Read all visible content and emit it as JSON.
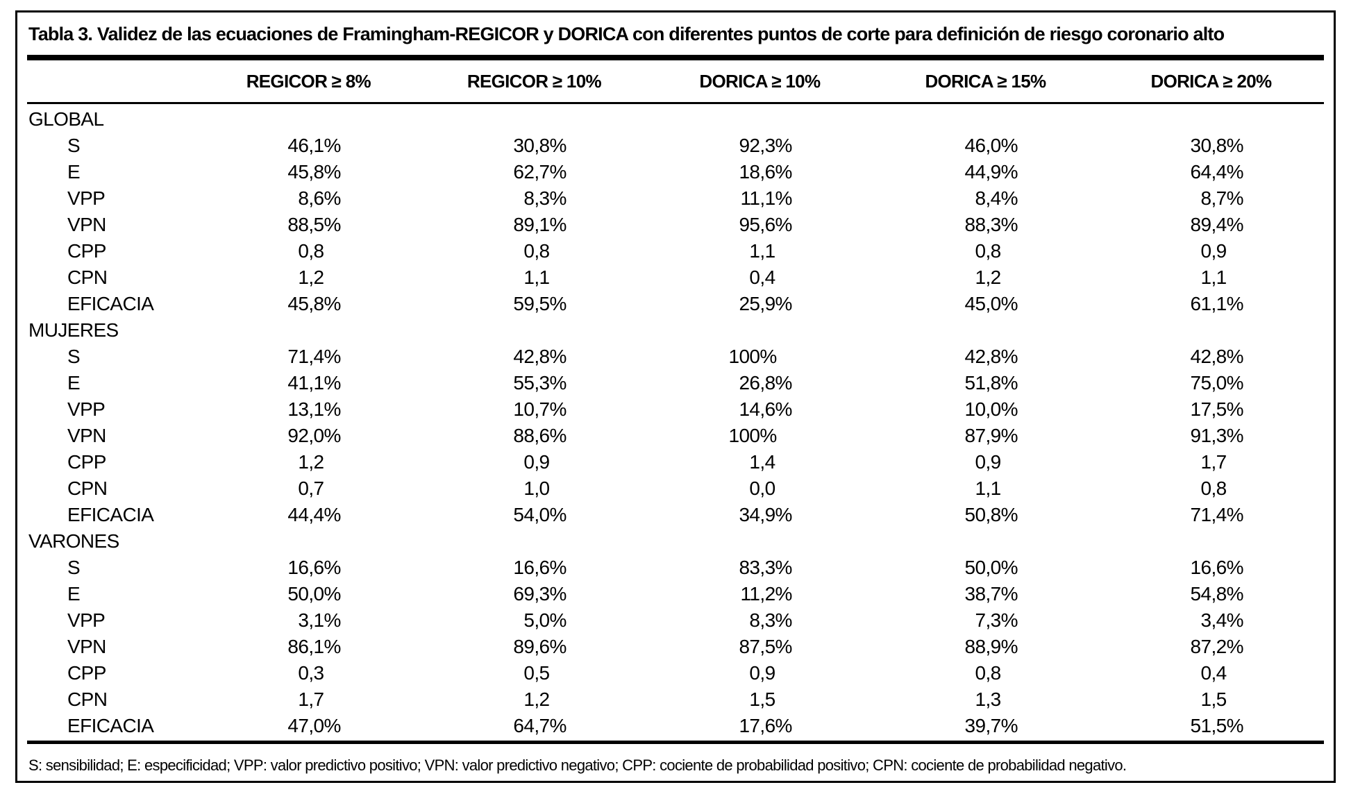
{
  "page": {
    "background_color": "#ffffff",
    "border_color": "#000000",
    "text_color": "#000000"
  },
  "table": {
    "title": "Tabla 3. Validez de las ecuaciones de Framingham-REGICOR y DORICA con diferentes puntos de corte para definición de riesgo coronario alto",
    "columns": [
      "",
      "REGICOR ≥ 8%",
      "REGICOR ≥ 10%",
      "DORICA ≥ 10%",
      "DORICA ≥ 15%",
      "DORICA ≥ 20%"
    ],
    "sections": [
      {
        "label": "GLOBAL",
        "rows": [
          {
            "label": "S",
            "values": [
              "46,1%",
              "30,8%",
              "92,3%",
              "46,0%",
              "30,8%"
            ]
          },
          {
            "label": "E",
            "values": [
              "45,8%",
              "62,7%",
              "18,6%",
              "44,9%",
              "64,4%"
            ]
          },
          {
            "label": "VPP",
            "values": [
              "8,6%",
              "8,3%",
              "11,1%",
              "8,4%",
              "8,7%"
            ]
          },
          {
            "label": "VPN",
            "values": [
              "88,5%",
              "89,1%",
              "95,6%",
              "88,3%",
              "89,4%"
            ]
          },
          {
            "label": "CPP",
            "values": [
              "0,8",
              "0,8",
              "1,1",
              "0,8",
              "0,9"
            ]
          },
          {
            "label": "CPN",
            "values": [
              "1,2",
              "1,1",
              "0,4",
              "1,2",
              "1,1"
            ]
          },
          {
            "label": "EFICACIA",
            "values": [
              "45,8%",
              "59,5%",
              "25,9%",
              "45,0%",
              "61,1%"
            ]
          }
        ]
      },
      {
        "label": "MUJERES",
        "rows": [
          {
            "label": "S",
            "values": [
              "71,4%",
              "42,8%",
              "100%",
              "42,8%",
              "42,8%"
            ]
          },
          {
            "label": "E",
            "values": [
              "41,1%",
              "55,3%",
              "26,8%",
              "51,8%",
              "75,0%"
            ]
          },
          {
            "label": "VPP",
            "values": [
              "13,1%",
              "10,7%",
              "14,6%",
              "10,0%",
              "17,5%"
            ]
          },
          {
            "label": "VPN",
            "values": [
              "92,0%",
              "88,6%",
              "100%",
              "87,9%",
              "91,3%"
            ]
          },
          {
            "label": "CPP",
            "values": [
              "1,2",
              "0,9",
              "1,4",
              "0,9",
              "1,7"
            ]
          },
          {
            "label": "CPN",
            "values": [
              "0,7",
              "1,0",
              "0,0",
              "1,1",
              "0,8"
            ]
          },
          {
            "label": "EFICACIA",
            "values": [
              "44,4%",
              "54,0%",
              "34,9%",
              "50,8%",
              "71,4%"
            ]
          }
        ]
      },
      {
        "label": "VARONES",
        "rows": [
          {
            "label": "S",
            "values": [
              "16,6%",
              "16,6%",
              "83,3%",
              "50,0%",
              "16,6%"
            ]
          },
          {
            "label": "E",
            "values": [
              "50,0%",
              "69,3%",
              "11,2%",
              "38,7%",
              "54,8%"
            ]
          },
          {
            "label": "VPP",
            "values": [
              "3,1%",
              "5,0%",
              "8,3%",
              "7,3%",
              "3,4%"
            ]
          },
          {
            "label": "VPN",
            "values": [
              "86,1%",
              "89,6%",
              "87,5%",
              "88,9%",
              "87,2%"
            ]
          },
          {
            "label": "CPP",
            "values": [
              "0,3",
              "0,5",
              "0,9",
              "0,8",
              "0,4"
            ]
          },
          {
            "label": "CPN",
            "values": [
              "1,7",
              "1,2",
              "1,5",
              "1,3",
              "1,5"
            ]
          },
          {
            "label": "EFICACIA",
            "values": [
              "47,0%",
              "64,7%",
              "17,6%",
              "39,7%",
              "51,5%"
            ]
          }
        ]
      }
    ],
    "footnote": "S: sensibilidad; E: especificidad; VPP: valor predictivo positivo; VPN: valor predictivo negativo; CPP: cociente de probabilidad positivo; CPN: cociente de probabilidad negativo."
  }
}
